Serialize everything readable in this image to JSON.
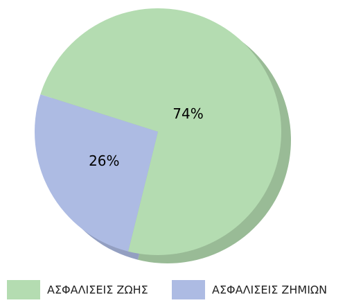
{
  "chart_data": {
    "type": "pie",
    "categories": [
      "ΑΣΦΑΛΙΣΕΙΣ ΖΩΗΣ",
      "ΑΣΦΑΛΙΣΕΙΣ ΖΗΜΙΩΝ"
    ],
    "values": [
      74,
      26
    ],
    "value_labels": [
      "74%",
      "26%"
    ],
    "colors": [
      "#b4dcb1",
      "#adbbe3"
    ],
    "legend": "bottom"
  }
}
